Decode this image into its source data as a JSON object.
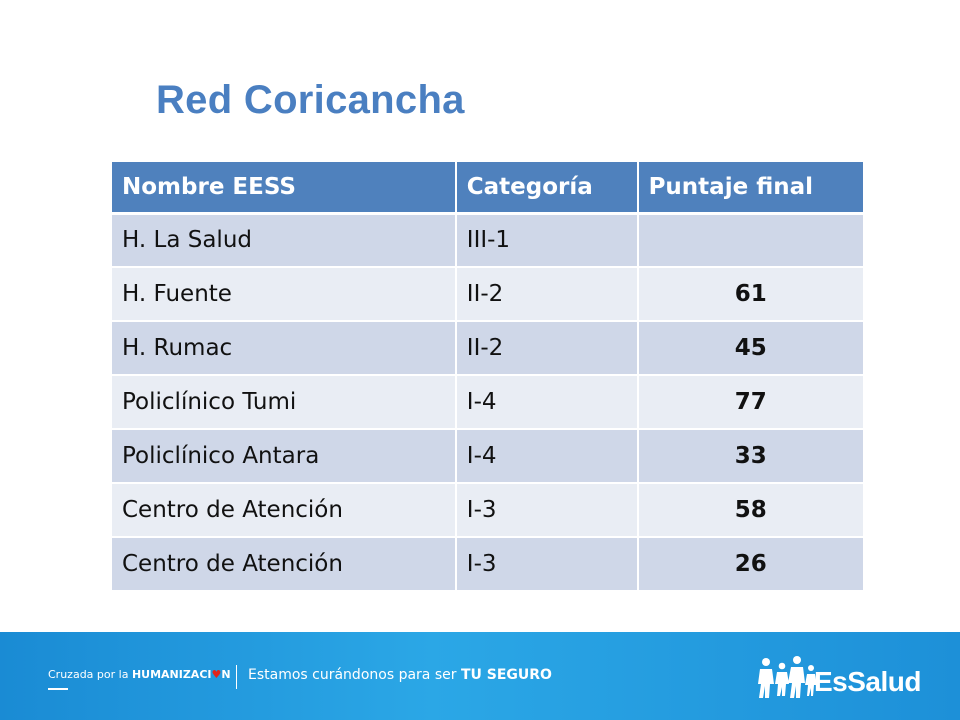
{
  "title": "Red Coricancha",
  "table": {
    "headers": [
      "Nombre EESS",
      "Categoría",
      "Puntaje final"
    ],
    "rows": [
      {
        "name": "H. La Salud",
        "category": "III-1",
        "score": ""
      },
      {
        "name": "H. Fuente",
        "category": "II-2",
        "score": "61"
      },
      {
        "name": "H. Rumac",
        "category": "II-2",
        "score": "45"
      },
      {
        "name": "Policlínico Tumi",
        "category": "I-4",
        "score": "77"
      },
      {
        "name": "Policlínico Antara",
        "category": "I-4",
        "score": "33"
      },
      {
        "name": "Centro de Atención",
        "category": "I-3",
        "score": "58"
      },
      {
        "name": "Centro de Atención",
        "category": "I-3",
        "score": "26"
      }
    ]
  },
  "footer": {
    "campaign_prefix": "Cruzada por la ",
    "campaign_bold_1": "HUMANIZACI",
    "campaign_heart": "♥",
    "campaign_bold_2": "N",
    "slogan_prefix": "Estamos curándonos para ser ",
    "slogan_bold": "TU SEGURO",
    "logo_text": "EsSalud",
    "logo_icon": "family-figures-icon"
  },
  "colors": {
    "title": "#4a7fc1",
    "header_bg": "#4f81bd",
    "row_odd": "#cfd7e8",
    "row_even": "#e9edf4",
    "footer_bg": "#2ba7e6",
    "heart": "#e2231a"
  }
}
